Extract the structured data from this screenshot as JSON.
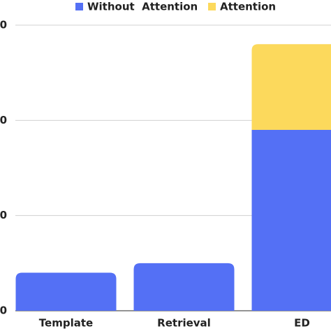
{
  "chart_data": {
    "type": "bar",
    "stacked": true,
    "categories": [
      "Template",
      "Retrieval",
      "ED"
    ],
    "series": [
      {
        "name": "Without  Attention",
        "color": "#5470f5",
        "values": [
          4,
          5,
          19
        ]
      },
      {
        "name": "Attention",
        "color": "#fcd95c",
        "values": [
          0,
          0,
          9
        ]
      }
    ],
    "ylim": [
      0,
      30
    ],
    "yticks": [
      0,
      {
        "value": 10,
        "label": "0"
      },
      {
        "value": 20,
        "label": "0"
      },
      {
        "value": 30,
        "label": "0"
      }
    ],
    "grid": true,
    "legend": "top"
  }
}
